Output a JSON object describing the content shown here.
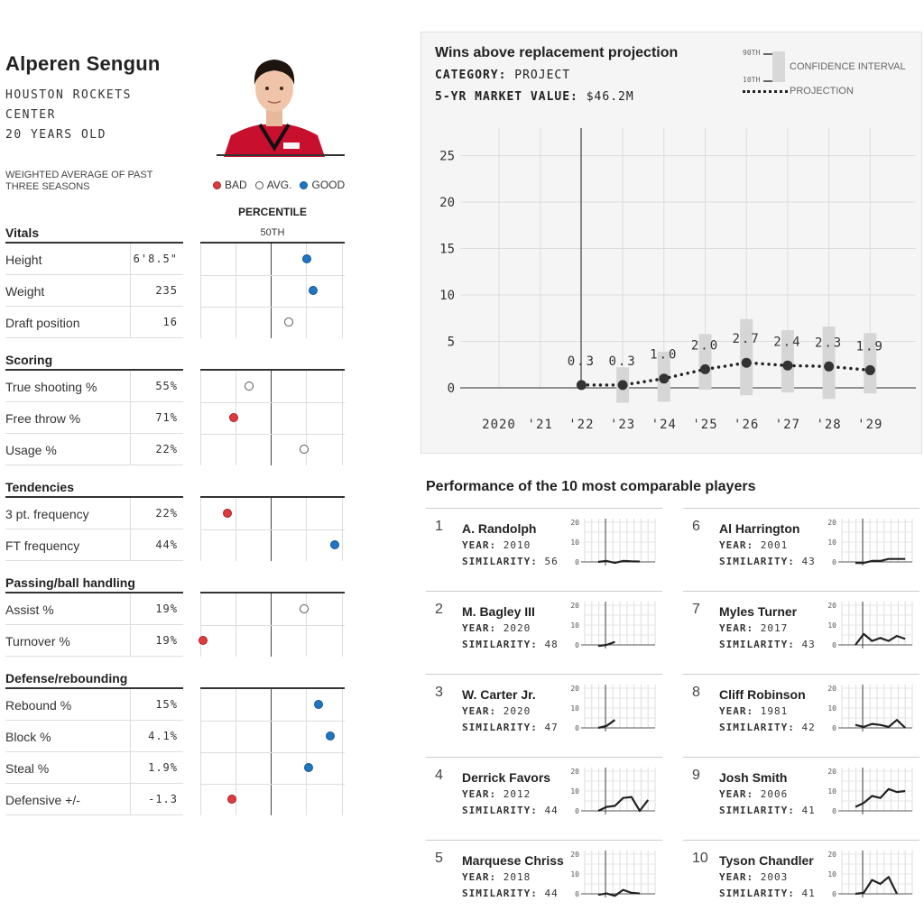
{
  "player": {
    "name": "Alperen Sengun",
    "team": "HOUSTON ROCKETS",
    "position": "CENTER",
    "age": "20 YEARS OLD",
    "weighted_note": "WEIGHTED AVERAGE OF PAST THREE SEASONS"
  },
  "legend": {
    "bad": "BAD",
    "avg": "AVG.",
    "good": "GOOD"
  },
  "percentile": {
    "title": "PERCENTILE",
    "mid_label": "50TH"
  },
  "colors": {
    "bad": "#e03a3e",
    "avg": "#ffffff",
    "good": "#1f76c5"
  },
  "sections": [
    {
      "title": "Vitals",
      "rows": [
        {
          "label": "Height",
          "value": "6'8.5\"",
          "pct": 74,
          "rating": "good"
        },
        {
          "label": "Weight",
          "value": "235",
          "pct": 78,
          "rating": "good"
        },
        {
          "label": "Draft position",
          "value": "16",
          "pct": 61,
          "rating": "avg"
        }
      ]
    },
    {
      "title": "Scoring",
      "rows": [
        {
          "label": "True shooting %",
          "value": "55%",
          "pct": 34,
          "rating": "avg"
        },
        {
          "label": "Free throw %",
          "value": "71%",
          "pct": 23,
          "rating": "bad"
        },
        {
          "label": "Usage %",
          "value": "22%",
          "pct": 72,
          "rating": "avg"
        }
      ]
    },
    {
      "title": "Tendencies",
      "rows": [
        {
          "label": "3 pt. frequency",
          "value": "22%",
          "pct": 19,
          "rating": "bad"
        },
        {
          "label": "FT frequency",
          "value": "44%",
          "pct": 93,
          "rating": "good"
        }
      ]
    },
    {
      "title": "Passing/ball handling",
      "rows": [
        {
          "label": "Assist %",
          "value": "19%",
          "pct": 72,
          "rating": "avg"
        },
        {
          "label": "Turnover %",
          "value": "19%",
          "pct": 2,
          "rating": "bad"
        }
      ]
    },
    {
      "title": "Defense/rebounding",
      "rows": [
        {
          "label": "Rebound %",
          "value": "15%",
          "pct": 82,
          "rating": "good"
        },
        {
          "label": "Block %",
          "value": "4.1%",
          "pct": 90,
          "rating": "good"
        },
        {
          "label": "Steal %",
          "value": "1.9%",
          "pct": 75,
          "rating": "good"
        },
        {
          "label": "Defensive +/-",
          "value": "-1.3",
          "pct": 22,
          "rating": "bad"
        }
      ]
    }
  ],
  "projection": {
    "title": "Wins above replacement projection",
    "category_label": "CATEGORY:",
    "category_value": "PROJECT",
    "market_label": "5-YR MARKET VALUE:",
    "market_value": "$46.2M",
    "ci_legend": "CONFIDENCE INTERVAL",
    "ci_top": "90TH",
    "ci_bottom": "10TH",
    "proj_legend": "PROJECTION"
  },
  "chart_data": {
    "type": "line",
    "title": "Wins above replacement projection",
    "x_labels": [
      "2020",
      "'21",
      "'22",
      "'23",
      "'24",
      "'25",
      "'26",
      "'27",
      "'28",
      "'29"
    ],
    "y_ticks": [
      0,
      5,
      10,
      15,
      20,
      25
    ],
    "ylim": [
      -2,
      27
    ],
    "series": [
      {
        "name": "PROJECTION",
        "x": [
          "'22",
          "'23",
          "'24",
          "'25",
          "'26",
          "'27",
          "'28",
          "'29"
        ],
        "values": [
          0.3,
          0.3,
          1.0,
          2.0,
          2.7,
          2.4,
          2.3,
          1.9
        ],
        "labels": [
          "0.3",
          "0.3",
          "1.0",
          "2.0",
          "2.7",
          "2.4",
          "2.3",
          "1.9"
        ],
        "ci_low": [
          null,
          -1.6,
          -1.5,
          -0.2,
          -0.8,
          -0.5,
          -1.2,
          -0.6
        ],
        "ci_high": [
          null,
          2.2,
          3.9,
          5.8,
          7.4,
          6.2,
          6.6,
          5.9
        ]
      }
    ],
    "grid": true
  },
  "comparables": {
    "title": "Performance of the 10 most comparable players",
    "year_label": "YEAR:",
    "sim_label": "SIMILARITY:",
    "spark_ticks": [
      "20",
      "10",
      "0"
    ],
    "players": [
      {
        "rank": "1",
        "name": "A. Randolph",
        "year": "2010",
        "similarity": "56",
        "values": [
          0,
          0.5,
          -0.5,
          0.5,
          0.3,
          0.2
        ]
      },
      {
        "rank": "2",
        "name": "M. Bagley III",
        "year": "2020",
        "similarity": "48",
        "values": [
          -0.5,
          0,
          1.5
        ]
      },
      {
        "rank": "3",
        "name": "W. Carter Jr.",
        "year": "2020",
        "similarity": "47",
        "values": [
          0,
          1,
          4
        ]
      },
      {
        "rank": "4",
        "name": "Derrick Favors",
        "year": "2012",
        "similarity": "44",
        "values": [
          0,
          2,
          2.5,
          6.5,
          7,
          0,
          5.5
        ]
      },
      {
        "rank": "5",
        "name": "Marquese Chriss",
        "year": "2018",
        "similarity": "44",
        "values": [
          -0.5,
          0.2,
          -1,
          2,
          0.5,
          0.2
        ]
      },
      {
        "rank": "6",
        "name": "Al Harrington",
        "year": "2001",
        "similarity": "43",
        "values": [
          -0.5,
          -0.5,
          0.5,
          0.5,
          1.5,
          1.5,
          1.5
        ]
      },
      {
        "rank": "7",
        "name": "Myles Turner",
        "year": "2017",
        "similarity": "43",
        "values": [
          0,
          5.5,
          2,
          3.5,
          2,
          4.5,
          3
        ]
      },
      {
        "rank": "8",
        "name": "Cliff Robinson",
        "year": "1981",
        "similarity": "42",
        "values": [
          1.5,
          0.5,
          2,
          1.5,
          0.5,
          4,
          0
        ]
      },
      {
        "rank": "9",
        "name": "Josh Smith",
        "year": "2006",
        "similarity": "41",
        "values": [
          2,
          4,
          7.5,
          6.5,
          11,
          9.5,
          10
        ]
      },
      {
        "rank": "10",
        "name": "Tyson Chandler",
        "year": "2003",
        "similarity": "41",
        "values": [
          0,
          0.5,
          7,
          5,
          8.5,
          0
        ]
      }
    ]
  }
}
